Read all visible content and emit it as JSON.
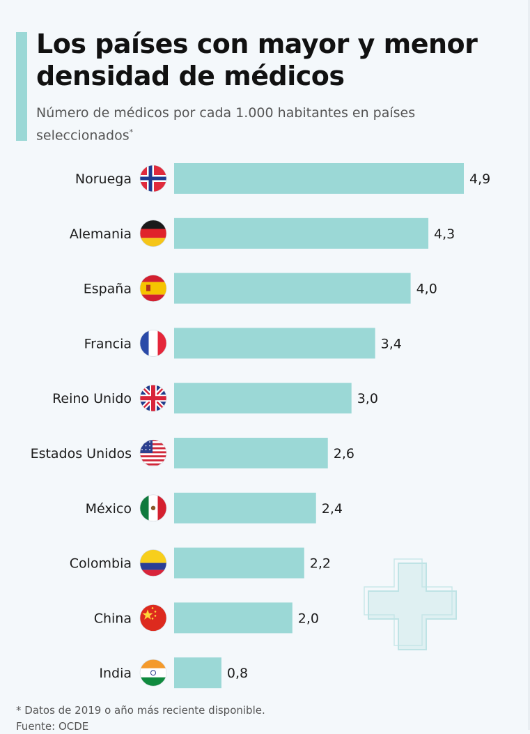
{
  "title": "Los países con mayor y menor densidad de médicos",
  "subtitle": "Número de médicos por cada 1.000 habitantes en países seleccionados",
  "subtitle_mark": "*",
  "footnote": "* Datos de 2019 o año más reciente disponible.",
  "source": "Fuente: OCDE",
  "colors": {
    "bar": "#9bd8d6",
    "accent": "#9bd8d6",
    "cross_fill": "#dff0f2",
    "cross_stroke": "#bfe3e5"
  },
  "chart_data": {
    "type": "bar",
    "orientation": "horizontal",
    "categories": [
      "Noruega",
      "Alemania",
      "España",
      "Francia",
      "Reino Unido",
      "Estados Unidos",
      "México",
      "Colombia",
      "China",
      "India"
    ],
    "values": [
      4.9,
      4.3,
      4.0,
      3.4,
      3.0,
      2.6,
      2.4,
      2.2,
      2.0,
      0.8
    ],
    "value_labels": [
      "4,9",
      "4,3",
      "4,0",
      "3,4",
      "3,0",
      "2,6",
      "2,4",
      "2,2",
      "2,0",
      "0,8"
    ],
    "flags": [
      "norway-flag-icon",
      "germany-flag-icon",
      "spain-flag-icon",
      "france-flag-icon",
      "uk-flag-icon",
      "usa-flag-icon",
      "mexico-flag-icon",
      "colombia-flag-icon",
      "china-flag-icon",
      "india-flag-icon"
    ],
    "xlim": [
      0,
      4.9
    ],
    "grid": false,
    "legend": "none"
  }
}
